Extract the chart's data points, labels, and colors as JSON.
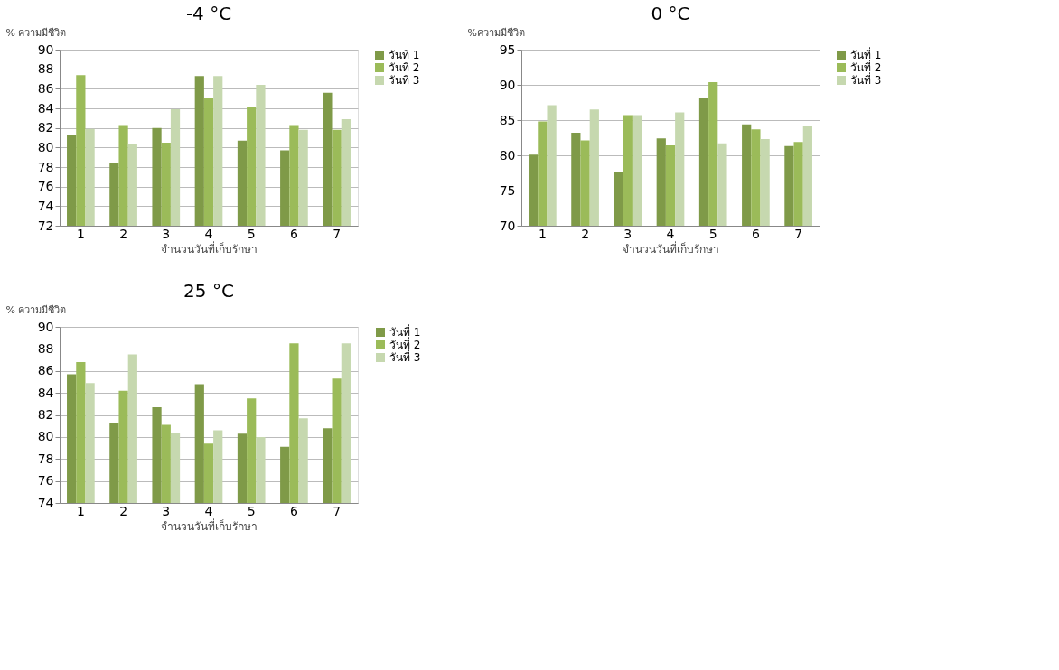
{
  "chart_data": [
    {
      "type": "bar",
      "title": "-4 °C",
      "xlabel": "จำนวนวันที่เก็บรักษา",
      "ylabel": "% ความมีชีวิต",
      "categories": [
        "1",
        "2",
        "3",
        "4",
        "5",
        "6",
        "7"
      ],
      "series": [
        {
          "name": "วันที่ 1",
          "color": "#7f9a48",
          "values": [
            81.3,
            78.4,
            82.0,
            87.3,
            80.7,
            79.7,
            85.6
          ]
        },
        {
          "name": "วันที่ 2",
          "color": "#9bbb59",
          "values": [
            87.4,
            82.3,
            80.5,
            85.1,
            84.1,
            82.3,
            81.8
          ]
        },
        {
          "name": "วันที่ 3",
          "color": "#c6d8af",
          "values": [
            81.9,
            80.4,
            83.9,
            87.3,
            86.4,
            81.8,
            82.9
          ]
        }
      ],
      "ylim": [
        72,
        90
      ],
      "yticks": [
        72,
        74,
        76,
        78,
        80,
        82,
        84,
        86,
        88,
        90
      ],
      "grid": "y",
      "legend": "right"
    },
    {
      "type": "bar",
      "title": "0 °C",
      "xlabel": "จำนวนวันที่เก็บรักษา",
      "ylabel": "%ความมีชีวิต",
      "categories": [
        "1",
        "2",
        "3",
        "4",
        "5",
        "6",
        "7"
      ],
      "series": [
        {
          "name": "วันที่ 1",
          "color": "#7f9a48",
          "values": [
            80.1,
            83.2,
            77.6,
            82.4,
            88.2,
            84.4,
            81.3
          ]
        },
        {
          "name": "วันที่ 2",
          "color": "#9bbb59",
          "values": [
            84.8,
            82.1,
            85.7,
            81.4,
            90.4,
            83.7,
            81.9
          ]
        },
        {
          "name": "วันที่ 3",
          "color": "#c6d8af",
          "values": [
            87.1,
            86.5,
            85.7,
            86.1,
            81.7,
            82.3,
            84.2
          ]
        }
      ],
      "ylim": [
        70,
        95
      ],
      "yticks": [
        70,
        75,
        80,
        85,
        90,
        95
      ],
      "grid": "y",
      "legend": "right"
    },
    {
      "type": "bar",
      "title": "25 °C",
      "xlabel": "จำนวนวันที่เก็บรักษา",
      "ylabel": "% ความมีชีวิต",
      "categories": [
        "1",
        "2",
        "3",
        "4",
        "5",
        "6",
        "7"
      ],
      "series": [
        {
          "name": "วันที่ 1",
          "color": "#7f9a48",
          "values": [
            85.7,
            81.3,
            82.7,
            84.8,
            80.3,
            79.1,
            80.8
          ]
        },
        {
          "name": "วันที่ 2",
          "color": "#9bbb59",
          "values": [
            86.8,
            84.2,
            81.1,
            79.4,
            83.5,
            88.5,
            85.3
          ]
        },
        {
          "name": "วันที่ 3",
          "color": "#c6d8af",
          "values": [
            84.9,
            87.5,
            80.4,
            80.6,
            80.0,
            81.7,
            88.5
          ]
        }
      ],
      "ylim": [
        74,
        90
      ],
      "yticks": [
        74,
        76,
        78,
        80,
        82,
        84,
        86,
        88,
        90
      ],
      "grid": "y",
      "legend": "right"
    }
  ]
}
